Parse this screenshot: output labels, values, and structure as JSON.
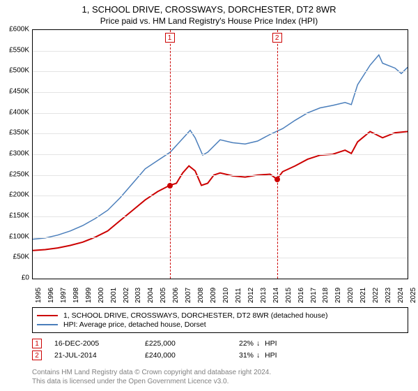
{
  "title": "1, SCHOOL DRIVE, CROSSWAYS, DORCHESTER, DT2 8WR",
  "subtitle": "Price paid vs. HM Land Registry's House Price Index (HPI)",
  "chart": {
    "type": "line",
    "background_color": "#ffffff",
    "grid_color": "#e4e4e4",
    "border_color": "#000000",
    "ymin": 0,
    "ymax": 600000,
    "ytick_step": 50000,
    "ytick_labels": [
      "£0",
      "£50K",
      "£100K",
      "£150K",
      "£200K",
      "£250K",
      "£300K",
      "£350K",
      "£400K",
      "£450K",
      "£500K",
      "£550K",
      "£600K"
    ],
    "xmin": 1995,
    "xmax": 2025,
    "xtick_step": 1,
    "xtick_labels": [
      "1995",
      "1996",
      "1997",
      "1998",
      "1999",
      "2000",
      "2001",
      "2002",
      "2003",
      "2004",
      "2005",
      "2006",
      "2007",
      "2008",
      "2009",
      "2010",
      "2011",
      "2012",
      "2013",
      "2014",
      "2015",
      "2016",
      "2017",
      "2018",
      "2019",
      "2020",
      "2021",
      "2022",
      "2023",
      "2024",
      "2025"
    ],
    "title_fontsize": 13,
    "label_fontsize": 10,
    "series": [
      {
        "name": "property",
        "label": "1, SCHOOL DRIVE, CROSSWAYS, DORCHESTER, DT2 8WR (detached house)",
        "color": "#cc0000",
        "line_width": 2,
        "points": [
          [
            1995,
            68000
          ],
          [
            1996,
            70000
          ],
          [
            1997,
            74000
          ],
          [
            1998,
            80000
          ],
          [
            1999,
            88000
          ],
          [
            2000,
            100000
          ],
          [
            2001,
            115000
          ],
          [
            2002,
            140000
          ],
          [
            2003,
            165000
          ],
          [
            2004,
            190000
          ],
          [
            2005,
            210000
          ],
          [
            2005.96,
            225000
          ],
          [
            2006.5,
            230000
          ],
          [
            2007,
            255000
          ],
          [
            2007.5,
            272000
          ],
          [
            2008,
            260000
          ],
          [
            2008.5,
            225000
          ],
          [
            2009,
            230000
          ],
          [
            2009.5,
            250000
          ],
          [
            2010,
            255000
          ],
          [
            2011,
            248000
          ],
          [
            2012,
            245000
          ],
          [
            2013,
            250000
          ],
          [
            2014,
            252000
          ],
          [
            2014.55,
            240000
          ],
          [
            2015,
            258000
          ],
          [
            2016,
            272000
          ],
          [
            2017,
            288000
          ],
          [
            2018,
            298000
          ],
          [
            2019,
            300000
          ],
          [
            2020,
            310000
          ],
          [
            2020.5,
            302000
          ],
          [
            2021,
            330000
          ],
          [
            2022,
            355000
          ],
          [
            2023,
            340000
          ],
          [
            2024,
            352000
          ],
          [
            2025,
            355000
          ]
        ]
      },
      {
        "name": "hpi",
        "label": "HPI: Average price, detached house, Dorset",
        "color": "#4a7ebb",
        "line_width": 1.5,
        "points": [
          [
            1995,
            95000
          ],
          [
            1996,
            98000
          ],
          [
            1997,
            105000
          ],
          [
            1998,
            115000
          ],
          [
            1999,
            128000
          ],
          [
            2000,
            145000
          ],
          [
            2001,
            165000
          ],
          [
            2002,
            195000
          ],
          [
            2003,
            230000
          ],
          [
            2004,
            265000
          ],
          [
            2005,
            285000
          ],
          [
            2006,
            305000
          ],
          [
            2007,
            338000
          ],
          [
            2007.6,
            358000
          ],
          [
            2008,
            340000
          ],
          [
            2008.6,
            298000
          ],
          [
            2009,
            305000
          ],
          [
            2010,
            335000
          ],
          [
            2011,
            328000
          ],
          [
            2012,
            325000
          ],
          [
            2013,
            332000
          ],
          [
            2014,
            348000
          ],
          [
            2015,
            362000
          ],
          [
            2016,
            382000
          ],
          [
            2017,
            400000
          ],
          [
            2018,
            412000
          ],
          [
            2019,
            418000
          ],
          [
            2020,
            425000
          ],
          [
            2020.5,
            420000
          ],
          [
            2021,
            468000
          ],
          [
            2022,
            515000
          ],
          [
            2022.7,
            540000
          ],
          [
            2023,
            520000
          ],
          [
            2024,
            508000
          ],
          [
            2024.5,
            495000
          ],
          [
            2025,
            510000
          ]
        ]
      }
    ],
    "sale_markers": [
      {
        "n": "1",
        "year": 2005.96,
        "price": 225000,
        "color": "#cc0000"
      },
      {
        "n": "2",
        "year": 2014.55,
        "price": 240000,
        "color": "#cc0000"
      }
    ]
  },
  "legend": {
    "border_color": "#000000",
    "rows": [
      {
        "color": "#cc0000",
        "width": 2,
        "text": "1, SCHOOL DRIVE, CROSSWAYS, DORCHESTER, DT2 8WR (detached house)"
      },
      {
        "color": "#4a7ebb",
        "width": 1.5,
        "text": "HPI: Average price, detached house, Dorset"
      }
    ]
  },
  "sales": [
    {
      "n": "1",
      "color": "#cc0000",
      "date": "16-DEC-2005",
      "price": "£225,000",
      "pct": "22%",
      "arrow": "↓",
      "ref": "HPI"
    },
    {
      "n": "2",
      "color": "#cc0000",
      "date": "21-JUL-2014",
      "price": "£240,000",
      "pct": "31%",
      "arrow": "↓",
      "ref": "HPI"
    }
  ],
  "footer": {
    "line1": "Contains HM Land Registry data © Crown copyright and database right 2024.",
    "line2": "This data is licensed under the Open Government Licence v3.0.",
    "color": "#808080"
  }
}
